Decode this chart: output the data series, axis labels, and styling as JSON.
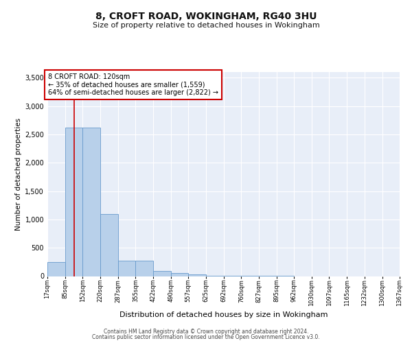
{
  "title": "8, CROFT ROAD, WOKINGHAM, RG40 3HU",
  "subtitle": "Size of property relative to detached houses in Wokingham",
  "xlabel": "Distribution of detached houses by size in Wokingham",
  "ylabel": "Number of detached properties",
  "bar_color": "#b8d0ea",
  "bar_edge_color": "#6699cc",
  "background_color": "#e8eef8",
  "grid_color": "#ffffff",
  "red_line_x": 120,
  "annotation_text": "8 CROFT ROAD: 120sqm\n← 35% of detached houses are smaller (1,559)\n64% of semi-detached houses are larger (2,822) →",
  "annotation_box_color": "#ffffff",
  "annotation_box_edge_color": "#cc0000",
  "footer_line1": "Contains HM Land Registry data © Crown copyright and database right 2024.",
  "footer_line2": "Contains public sector information licensed under the Open Government Licence v3.0.",
  "bin_edges": [
    17,
    85,
    152,
    220,
    287,
    355,
    422,
    490,
    557,
    625,
    692,
    760,
    827,
    895,
    962,
    1030,
    1097,
    1165,
    1232,
    1300,
    1367
  ],
  "bin_labels": [
    "17sqm",
    "85sqm",
    "152sqm",
    "220sqm",
    "287sqm",
    "355sqm",
    "422sqm",
    "490sqm",
    "557sqm",
    "625sqm",
    "692sqm",
    "760sqm",
    "827sqm",
    "895sqm",
    "962sqm",
    "1030sqm",
    "1097sqm",
    "1165sqm",
    "1232sqm",
    "1300sqm",
    "1367sqm"
  ],
  "bar_heights": [
    250,
    2620,
    2620,
    1100,
    275,
    275,
    95,
    60,
    35,
    8,
    4,
    2,
    1,
    1,
    0,
    0,
    0,
    0,
    0,
    0
  ],
  "ylim": [
    0,
    3600
  ],
  "yticks": [
    0,
    500,
    1000,
    1500,
    2000,
    2500,
    3000,
    3500
  ]
}
